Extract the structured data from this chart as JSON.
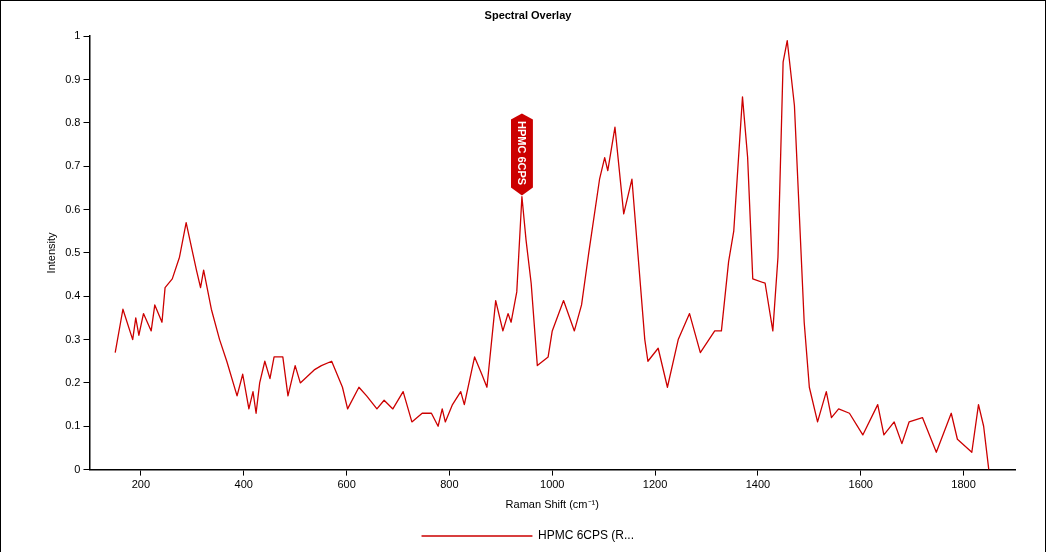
{
  "chart_data": {
    "type": "line",
    "title": "Spectral Overlay",
    "xlabel": "Raman Shift (cm⁻¹)",
    "ylabel": "Intensity",
    "xlim": [
      100,
      1900
    ],
    "xticks": [
      200,
      400,
      600,
      800,
      1000,
      1200,
      1400,
      1600,
      1800
    ],
    "ylim": [
      0,
      1
    ],
    "yticks": [
      0,
      0.1,
      0.2,
      0.3,
      0.4,
      0.5,
      0.6,
      0.7,
      0.8,
      0.9,
      1
    ],
    "grid": false,
    "legend": "bottom",
    "marker": "none",
    "line_style": "solid",
    "annotations": [
      {
        "text": "HPMC 6CPS",
        "x": 941,
        "y": 0.63
      }
    ],
    "series": [
      {
        "name": "HPMC 6CPS (R...",
        "color": "#cc0000",
        "x": [
          150,
          165,
          184,
          190,
          196,
          205,
          220,
          227,
          241,
          247,
          261,
          275,
          288,
          308,
          316,
          322,
          337,
          353,
          367,
          387,
          398,
          410,
          418,
          424,
          431,
          441,
          451,
          459,
          476,
          486,
          500,
          510,
          537,
          551,
          571,
          592,
          602,
          624,
          639,
          659,
          673,
          690,
          710,
          727,
          747,
          765,
          778,
          786,
          792,
          806,
          822,
          829,
          849,
          863,
          873,
          890,
          904,
          914,
          920,
          931,
          941,
          949,
          959,
          971,
          992,
          1000,
          1022,
          1043,
          1057,
          1071,
          1092,
          1102,
          1108,
          1122,
          1139,
          1155,
          1180,
          1186,
          1206,
          1224,
          1245,
          1267,
          1288,
          1316,
          1329,
          1343,
          1353,
          1370,
          1380,
          1390,
          1414,
          1429,
          1439,
          1449,
          1457,
          1471,
          1490,
          1500,
          1516,
          1533,
          1543,
          1557,
          1578,
          1604,
          1633,
          1645,
          1665,
          1680,
          1694,
          1720,
          1747,
          1776,
          1788,
          1816,
          1829,
          1839,
          1849
        ],
        "values": [
          0.27,
          0.37,
          0.3,
          0.35,
          0.31,
          0.36,
          0.32,
          0.38,
          0.34,
          0.42,
          0.44,
          0.49,
          0.57,
          0.46,
          0.42,
          0.46,
          0.37,
          0.3,
          0.25,
          0.17,
          0.22,
          0.14,
          0.18,
          0.13,
          0.2,
          0.25,
          0.21,
          0.26,
          0.26,
          0.17,
          0.24,
          0.2,
          0.23,
          0.24,
          0.25,
          0.19,
          0.14,
          0.19,
          0.17,
          0.14,
          0.16,
          0.14,
          0.18,
          0.11,
          0.13,
          0.13,
          0.1,
          0.14,
          0.11,
          0.15,
          0.18,
          0.15,
          0.26,
          0.22,
          0.19,
          0.39,
          0.32,
          0.36,
          0.34,
          0.41,
          0.63,
          0.53,
          0.43,
          0.24,
          0.26,
          0.32,
          0.39,
          0.32,
          0.38,
          0.5,
          0.67,
          0.72,
          0.69,
          0.79,
          0.59,
          0.67,
          0.3,
          0.25,
          0.28,
          0.19,
          0.3,
          0.36,
          0.27,
          0.32,
          0.32,
          0.48,
          0.55,
          0.86,
          0.72,
          0.44,
          0.43,
          0.32,
          0.49,
          0.94,
          0.99,
          0.84,
          0.34,
          0.19,
          0.11,
          0.18,
          0.12,
          0.14,
          0.13,
          0.08,
          0.15,
          0.08,
          0.11,
          0.06,
          0.11,
          0.12,
          0.04,
          0.13,
          0.07,
          0.04,
          0.15,
          0.1,
          0
        ]
      }
    ]
  }
}
